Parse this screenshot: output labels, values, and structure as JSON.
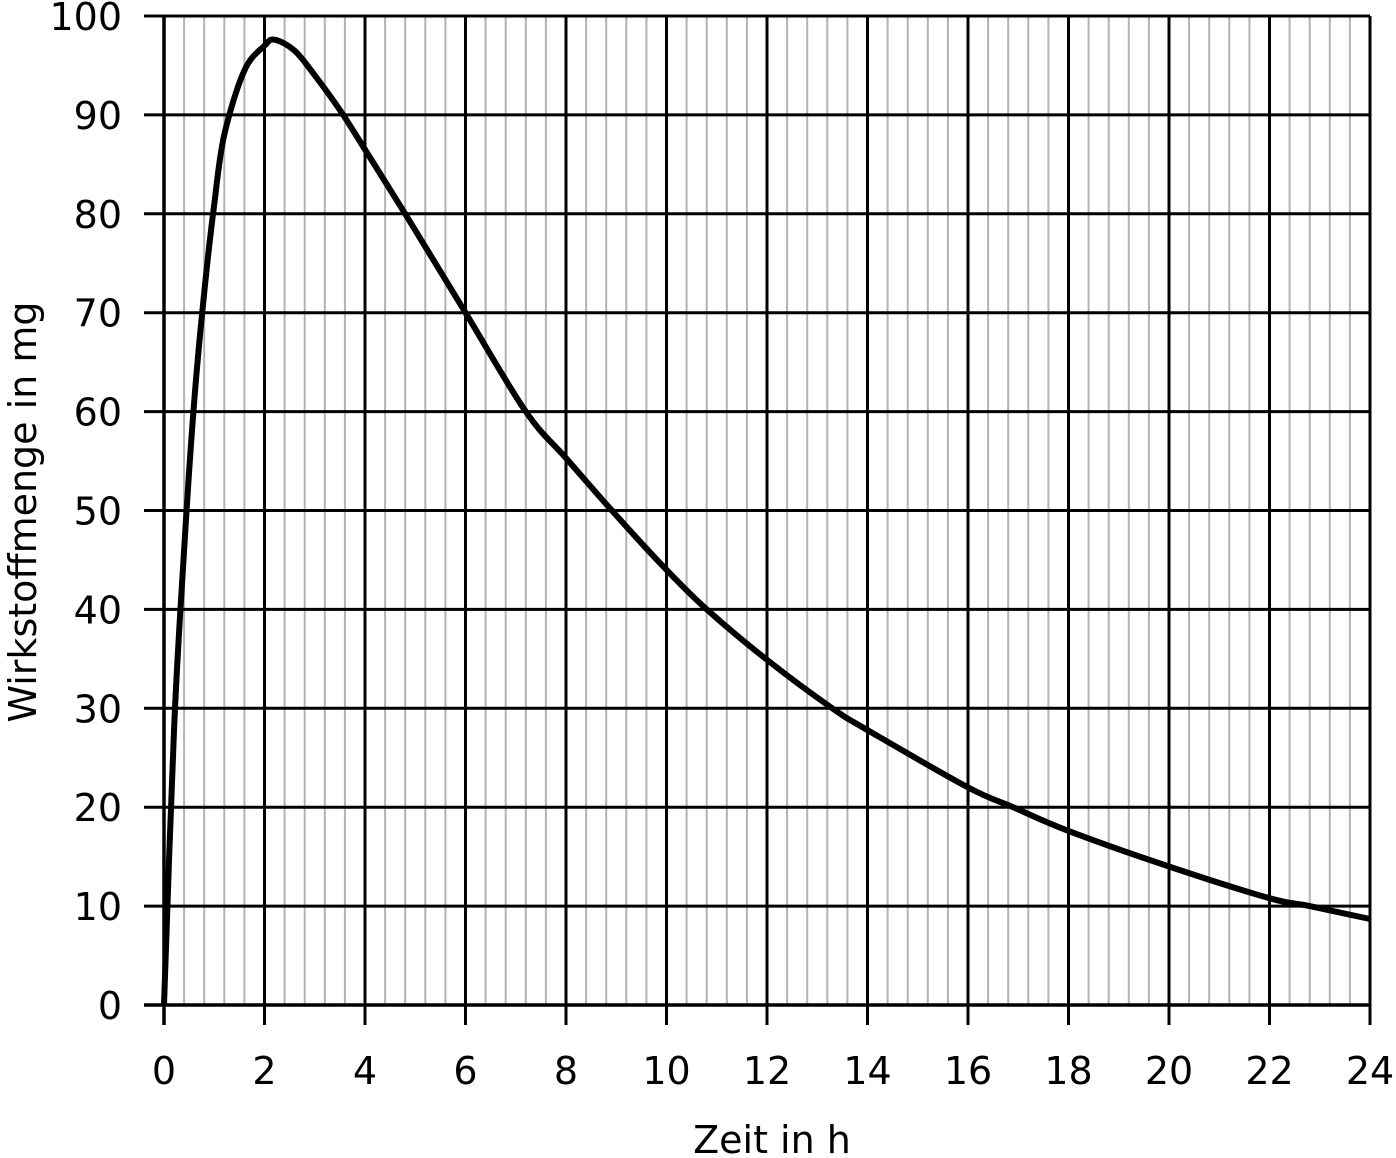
{
  "chart_data": {
    "type": "line",
    "title": "",
    "xlabel": "Zeit in h",
    "ylabel": "Wirkstoffmenge in mg",
    "xlim": [
      0,
      24
    ],
    "ylim": [
      0,
      100
    ],
    "grid": true,
    "x_major_step": 2,
    "x_minor_step": 0.4,
    "y_major_step": 10,
    "x_ticks": [
      0,
      2,
      4,
      6,
      8,
      10,
      12,
      14,
      16,
      18,
      20,
      22,
      24
    ],
    "y_ticks": [
      0,
      10,
      20,
      30,
      40,
      50,
      60,
      70,
      80,
      90,
      100
    ],
    "legend": null,
    "series": [
      {
        "name": "Wirkstoffmenge",
        "color": "#000000",
        "x": [
          0,
          0.2,
          0.4,
          0.6,
          0.8,
          1.0,
          1.2,
          1.6,
          2.0,
          2.2,
          2.6,
          3.0,
          3.5,
          4.0,
          4.8,
          6.0,
          7.2,
          8.0,
          9.0,
          10.0,
          10.8,
          12.0,
          13.3,
          14.0,
          16.0,
          16.9,
          18.0,
          20.0,
          22.0,
          22.8,
          24.0
        ],
        "values": [
          0,
          28,
          46,
          61,
          72,
          81,
          88,
          94.5,
          97,
          97.6,
          96.5,
          94,
          90.5,
          86.5,
          80,
          70,
          60,
          55.3,
          49.5,
          44,
          40,
          34.9,
          30,
          27.8,
          22,
          20,
          17.6,
          14,
          10.8,
          10,
          8.7
        ]
      }
    ]
  },
  "axes": {
    "x_title": "Zeit in h",
    "y_title": "Wirkstoffmenge in mg",
    "x_tick_labels": [
      "0",
      "2",
      "4",
      "6",
      "8",
      "10",
      "12",
      "14",
      "16",
      "18",
      "20",
      "22",
      "24"
    ],
    "y_tick_labels": [
      "0",
      "10",
      "20",
      "30",
      "40",
      "50",
      "60",
      "70",
      "80",
      "90",
      "100"
    ]
  },
  "colors": {
    "major_grid": "#000000",
    "minor_grid": "#b3b3b3",
    "curve": "#000000",
    "background": "#ffffff"
  }
}
